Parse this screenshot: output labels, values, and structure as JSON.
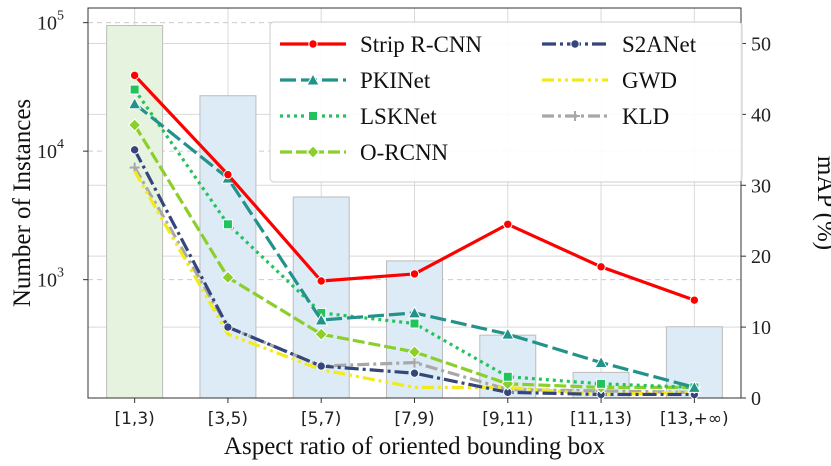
{
  "chart_data": {
    "type": "bar+line",
    "xlabel": "Aspect ratio of oriented bounding box",
    "ylabel_left": "Number of Instances",
    "ylabel_right": "mAP (%)",
    "categories": [
      "[1,3)",
      "[3,5)",
      "[5,7)",
      "[7,9)",
      "[9,11)",
      "[11,13)",
      "[13,+∞)"
    ],
    "bars": {
      "name": "Number of Instances",
      "values": [
        95000,
        27000,
        4400,
        1400,
        370,
        190,
        430
      ],
      "colors": [
        "#e6f3de",
        "#dcebf6",
        "#dcebf6",
        "#dcebf6",
        "#dcebf6",
        "#dcebf6",
        "#dcebf6"
      ],
      "edge_color": "#bcbcbc"
    },
    "left_axis": {
      "scale": "log",
      "ylim": [
        120,
        130000
      ],
      "ticks": [
        {
          "value": 1000,
          "base": "10",
          "exp": "3"
        },
        {
          "value": 10000,
          "base": "10",
          "exp": "4"
        },
        {
          "value": 100000,
          "base": "10",
          "exp": "5"
        }
      ]
    },
    "right_axis": {
      "ylim": [
        0,
        55
      ],
      "ticks": [
        "0",
        "10",
        "20",
        "30",
        "40",
        "50"
      ]
    },
    "series": [
      {
        "name": "Strip R-CNN",
        "color": "#ff0000",
        "dash": "",
        "marker": "circle",
        "values": [
          45.5,
          31.5,
          16.5,
          17.5,
          24.5,
          18.5,
          13.8
        ]
      },
      {
        "name": "PKINet",
        "color": "#23928a",
        "dash": "16,5",
        "marker": "triangle",
        "values": [
          41.5,
          31.0,
          11.0,
          12.0,
          9.0,
          5.0,
          1.5
        ]
      },
      {
        "name": "LSKNet",
        "color": "#22c35e",
        "dash": "3,4",
        "marker": "square",
        "values": [
          43.5,
          24.5,
          12.0,
          10.5,
          3.0,
          2.0,
          1.5
        ]
      },
      {
        "name": "O-RCNN",
        "color": "#8ccf2d",
        "dash": "12,4",
        "marker": "diamond",
        "values": [
          38.5,
          17.0,
          9.0,
          6.5,
          2.0,
          1.5,
          1.5
        ]
      },
      {
        "name": "S2ANet",
        "color": "#34467b",
        "dash": "14,4,3,4",
        "marker": "circle",
        "values": [
          35.0,
          10.0,
          4.5,
          3.5,
          0.8,
          0.5,
          0.5
        ]
      },
      {
        "name": "GWD",
        "color": "#f3ea1c",
        "dash": "12,4,3,4,3,4",
        "marker": "none",
        "values": [
          32.0,
          9.0,
          4.0,
          1.5,
          1.5,
          0.5,
          0.8
        ]
      },
      {
        "name": "KLD",
        "color": "#a8a8a8",
        "dash": "12,4,3,4",
        "marker": "plus",
        "values": [
          32.5,
          10.0,
          4.5,
          5.0,
          1.2,
          1.0,
          0.8
        ]
      }
    ],
    "legend": {
      "placement": "top-right",
      "columns": [
        [
          "Strip R-CNN",
          "PKINet",
          "LSKNet",
          "O-RCNN"
        ],
        [
          "S2ANet",
          "GWD",
          "KLD"
        ]
      ]
    },
    "grid": true
  }
}
